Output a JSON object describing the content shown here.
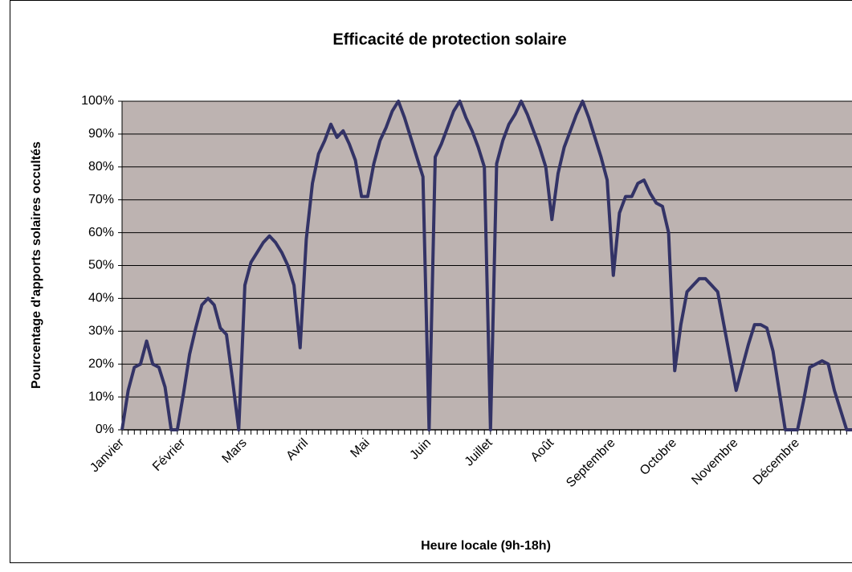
{
  "chart_data": {
    "type": "line",
    "title": "Efficacité de protection solaire",
    "x_label": "Heure locale (9h-18h)",
    "y_label": "Pourcentage d'apports solaires occultés",
    "categories": [
      "Janvier",
      null,
      null,
      null,
      null,
      null,
      null,
      null,
      null,
      null,
      "Février",
      null,
      null,
      null,
      null,
      null,
      null,
      null,
      null,
      null,
      "Mars",
      null,
      null,
      null,
      null,
      null,
      null,
      null,
      null,
      null,
      "Avril",
      null,
      null,
      null,
      null,
      null,
      null,
      null,
      null,
      null,
      "Mai",
      null,
      null,
      null,
      null,
      null,
      null,
      null,
      null,
      null,
      "Juin",
      null,
      null,
      null,
      null,
      null,
      null,
      null,
      null,
      null,
      "Juillet",
      null,
      null,
      null,
      null,
      null,
      null,
      null,
      null,
      null,
      "Août",
      null,
      null,
      null,
      null,
      null,
      null,
      null,
      null,
      null,
      "Septembre",
      null,
      null,
      null,
      null,
      null,
      null,
      null,
      null,
      null,
      "Octobre",
      null,
      null,
      null,
      null,
      null,
      null,
      null,
      null,
      null,
      "Novembre",
      null,
      null,
      null,
      null,
      null,
      null,
      null,
      null,
      null,
      "Décembre",
      null,
      null,
      null,
      null,
      null,
      null,
      null,
      null,
      null
    ],
    "series": [
      {
        "color": "#333366",
        "values": [
          0,
          12,
          19,
          20,
          27,
          20,
          19,
          13,
          0,
          0,
          11,
          23,
          31,
          38,
          40,
          38,
          31,
          29,
          15,
          0,
          44,
          51,
          54,
          57,
          59,
          57,
          54,
          50,
          44,
          25,
          58,
          75,
          84,
          88,
          93,
          89,
          91,
          87,
          82,
          71,
          71,
          81,
          88,
          92,
          97,
          100,
          95,
          89,
          83,
          77,
          0,
          83,
          87,
          92,
          97,
          100,
          95,
          91,
          86,
          80,
          0,
          81,
          88,
          93,
          96,
          100,
          96,
          91,
          86,
          80,
          64,
          78,
          86,
          91,
          96,
          100,
          95,
          89,
          83,
          76,
          47,
          66,
          71,
          71,
          75,
          76,
          72,
          69,
          68,
          60,
          18,
          32,
          42,
          44,
          46,
          46,
          44,
          42,
          32,
          22,
          12,
          19,
          26,
          32,
          32,
          31,
          24,
          12,
          0,
          0,
          0,
          9,
          19,
          20,
          21,
          20,
          12,
          6,
          0,
          0
        ]
      }
    ],
    "ylim": [
      0,
      100
    ],
    "yticks": [
      {
        "value": 0,
        "label": "0%"
      },
      {
        "value": 10,
        "label": "10%"
      },
      {
        "value": 20,
        "label": "20%"
      },
      {
        "value": 30,
        "label": "30%"
      },
      {
        "value": 40,
        "label": "40%"
      },
      {
        "value": 50,
        "label": "50%"
      },
      {
        "value": 60,
        "label": "60%"
      },
      {
        "value": 70,
        "label": "70%"
      },
      {
        "value": 80,
        "label": "80%"
      },
      {
        "value": 90,
        "label": "90%"
      },
      {
        "value": 100,
        "label": "100%"
      }
    ],
    "grid": true
  }
}
